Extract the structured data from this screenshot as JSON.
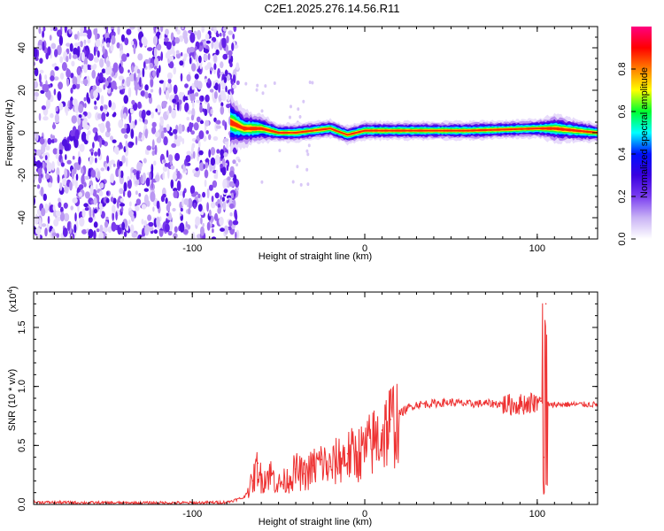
{
  "title": "C2E1.2025.276.14.56.R11",
  "chart_data": [
    {
      "type": "heatmap",
      "name": "spectrogram",
      "xlabel": "Height of straight line (km)",
      "ylabel": "Frequency (Hz)",
      "xlim": [
        -192,
        135
      ],
      "ylim": [
        -50,
        50
      ],
      "xticks": [
        -100,
        0,
        100
      ],
      "xtick_labels": [
        "-100",
        "0",
        "100"
      ],
      "yticks": [
        -40,
        -20,
        0,
        20,
        40
      ],
      "ytick_labels": [
        "-40",
        "-20",
        "0",
        "20",
        "40"
      ],
      "noise_region_x": [
        -192,
        -75
      ],
      "signal_band": {
        "x": [
          -78,
          -70,
          -60,
          -50,
          -40,
          -30,
          -20,
          -10,
          0,
          20,
          40,
          60,
          80,
          100,
          110,
          135
        ],
        "center_hz": [
          5,
          2,
          2,
          0,
          0,
          1,
          2,
          -1,
          1,
          1,
          1,
          1,
          1.5,
          2,
          2,
          0
        ],
        "half_width_hz": [
          6,
          4,
          3,
          2,
          2,
          2,
          2,
          2,
          2,
          2,
          2,
          2,
          2,
          2,
          3,
          2
        ]
      },
      "colorbar": {
        "label": "Normalized spectral amplitude",
        "range": [
          0,
          1
        ],
        "ticks": [
          0,
          0.2,
          0.4,
          0.6,
          0.8
        ],
        "tick_labels": [
          "0.0",
          "0.2",
          "0.4",
          "0.6",
          "0.8"
        ],
        "colors": [
          "#ffffff",
          "#c9b3f5",
          "#7a3df0",
          "#3a00e0",
          "#0010ff",
          "#00ffff",
          "#00ff30",
          "#ffff00",
          "#ff8000",
          "#ff0000",
          "#ff0080"
        ]
      }
    },
    {
      "type": "line",
      "name": "snr",
      "xlabel": "Height of straight line (km)",
      "ylabel": "SNR (10 * v/v)",
      "scale_label_base": "(x10",
      "scale_label_exp": "4",
      "scale_label_close": ")",
      "xlim": [
        -192,
        135
      ],
      "ylim": [
        0,
        18000
      ],
      "xticks": [
        -100,
        0,
        100
      ],
      "xtick_labels": [
        "-100",
        "0",
        "100"
      ],
      "yticks": [
        0,
        5000,
        10000,
        15000
      ],
      "ytick_labels": [
        "0.0",
        "0.5",
        "1.0",
        "1.5"
      ],
      "line_color": "#ee3333",
      "x": [
        -192,
        -150,
        -100,
        -80,
        -70,
        -65,
        -62,
        -60,
        -55,
        -50,
        -45,
        -40,
        -35,
        -30,
        -25,
        -20,
        -15,
        -10,
        -5,
        0,
        5,
        10,
        15,
        20,
        25,
        30,
        40,
        50,
        60,
        70,
        80,
        90,
        95,
        100,
        102,
        103,
        104,
        105,
        106,
        108,
        110,
        120,
        135
      ],
      "y": [
        200,
        150,
        150,
        200,
        600,
        2000,
        3500,
        2200,
        2800,
        1800,
        2200,
        3000,
        2600,
        3300,
        3800,
        3200,
        4100,
        4300,
        4500,
        4800,
        5600,
        6300,
        7200,
        7700,
        8200,
        8500,
        8600,
        8700,
        8550,
        8600,
        8550,
        8550,
        8700,
        8800,
        9000,
        8600,
        4000,
        17000,
        8600,
        8400,
        8500,
        8500,
        8500
      ]
    }
  ]
}
